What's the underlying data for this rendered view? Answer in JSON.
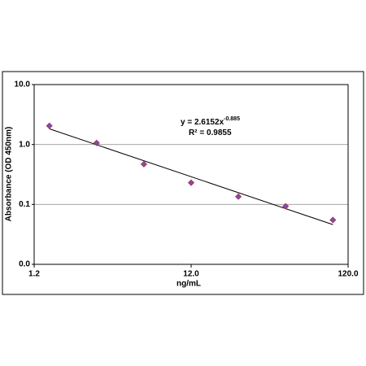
{
  "chart_data": {
    "type": "scatter",
    "x_label": "ng/mL",
    "y_label": "Absorbance (OD 450nm)",
    "x_scale": "log",
    "y_scale": "log",
    "xlim": [
      1.2,
      120
    ],
    "ylim": [
      0.01,
      10
    ],
    "xticks": [
      1.2,
      {
        "value": 12,
        "label": "12.0"
      },
      {
        "value": 120,
        "label": "120.0"
      }
    ],
    "yticks": [
      {
        "value": 0.01,
        "label": "0.0"
      },
      0.1,
      {
        "value": 1,
        "label": "1.0"
      },
      {
        "value": 10,
        "label": "10.0"
      }
    ],
    "grid": true,
    "series": [
      {
        "color": "#7a4fb0",
        "x": [
          1.5,
          3,
          6,
          12,
          24,
          48,
          96
        ],
        "values": [
          2.05,
          1.06,
          0.47,
          0.23,
          0.135,
          0.093,
          0.055
        ]
      }
    ],
    "trendline": {
      "prefix": "y = ",
      "coefficient": 2.6152,
      "variable": "x",
      "exponent": -0.885,
      "r_squared_label": "R² = ",
      "r_squared": 0.9855
    }
  }
}
